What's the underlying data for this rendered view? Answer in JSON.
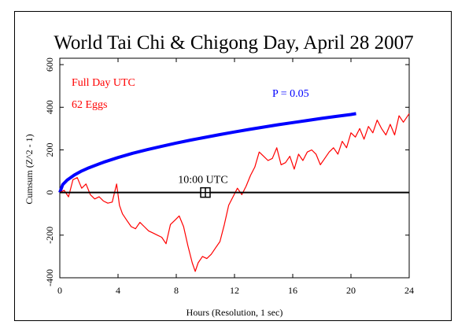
{
  "chart_data": {
    "type": "line",
    "title": "World Tai Chi & Chigong Day, April 28 2007",
    "xlabel": "Hours (Resolution, 1 sec)",
    "ylabel": "Cumsum (Z^2 - 1)",
    "xlim": [
      0,
      24
    ],
    "ylim": [
      -400,
      630
    ],
    "xticks": [
      0,
      4,
      8,
      12,
      16,
      20,
      24
    ],
    "yticks": [
      -400,
      -200,
      0,
      200,
      400,
      600
    ],
    "grid": false,
    "annotations": {
      "full_day": "Full Day UTC",
      "eggs": "62 Eggs",
      "p_label": "P = 0.05",
      "event_label": "10:00 UTC",
      "event_hour": 10,
      "event_value": 0
    },
    "colors": {
      "data": "#ff0000",
      "significance": "#0000ff",
      "zero_line": "#000000"
    },
    "series": [
      {
        "name": "",
        "color": "#ff0000",
        "x": [
          0,
          0.3,
          0.6,
          0.9,
          1.2,
          1.5,
          1.8,
          2.1,
          2.4,
          2.7,
          3.0,
          3.3,
          3.6,
          3.9,
          4.1,
          4.3,
          4.6,
          4.9,
          5.2,
          5.5,
          5.8,
          6.1,
          6.4,
          6.7,
          7.0,
          7.3,
          7.6,
          7.9,
          8.2,
          8.5,
          8.8,
          9.1,
          9.3,
          9.5,
          9.8,
          10.1,
          10.4,
          10.7,
          11.0,
          11.3,
          11.6,
          11.9,
          12.2,
          12.5,
          12.8,
          13.1,
          13.4,
          13.7,
          14.0,
          14.3,
          14.6,
          14.9,
          15.2,
          15.5,
          15.8,
          16.1,
          16.4,
          16.7,
          17.0,
          17.3,
          17.6,
          17.9,
          18.2,
          18.5,
          18.8,
          19.1,
          19.4,
          19.7,
          20.0,
          20.3,
          20.6,
          20.9,
          21.2,
          21.5,
          21.8,
          22.1,
          22.4,
          22.7,
          23.0,
          23.3,
          23.6,
          24.0
        ],
        "y": [
          0,
          10,
          -20,
          60,
          70,
          20,
          40,
          -10,
          -30,
          -20,
          -40,
          -50,
          -45,
          40,
          -60,
          -100,
          -130,
          -160,
          -170,
          -140,
          -160,
          -180,
          -190,
          -200,
          -210,
          -240,
          -150,
          -130,
          -110,
          -160,
          -250,
          -330,
          -370,
          -330,
          -300,
          -310,
          -290,
          -260,
          -230,
          -150,
          -60,
          -20,
          20,
          -10,
          30,
          80,
          120,
          190,
          170,
          150,
          160,
          210,
          130,
          140,
          170,
          110,
          180,
          150,
          190,
          200,
          180,
          130,
          160,
          190,
          210,
          180,
          240,
          210,
          280,
          260,
          300,
          250,
          310,
          280,
          340,
          300,
          270,
          320,
          270,
          360,
          330,
          370
        ]
      },
      {
        "name": "P = 0.05",
        "color": "#0000ff",
        "x": [
          0,
          0.2,
          0.5,
          1,
          1.5,
          2,
          3,
          4,
          5,
          6,
          7,
          8,
          9,
          10,
          11,
          12,
          13,
          14,
          15,
          16,
          17,
          18,
          19,
          20,
          20.35
        ],
        "y": [
          0,
          37,
          58,
          82,
          101,
          116,
          142,
          164,
          184,
          201,
          217,
          232,
          246,
          259,
          272,
          284,
          296,
          307,
          318,
          328,
          338,
          348,
          357,
          366,
          370
        ]
      }
    ]
  }
}
